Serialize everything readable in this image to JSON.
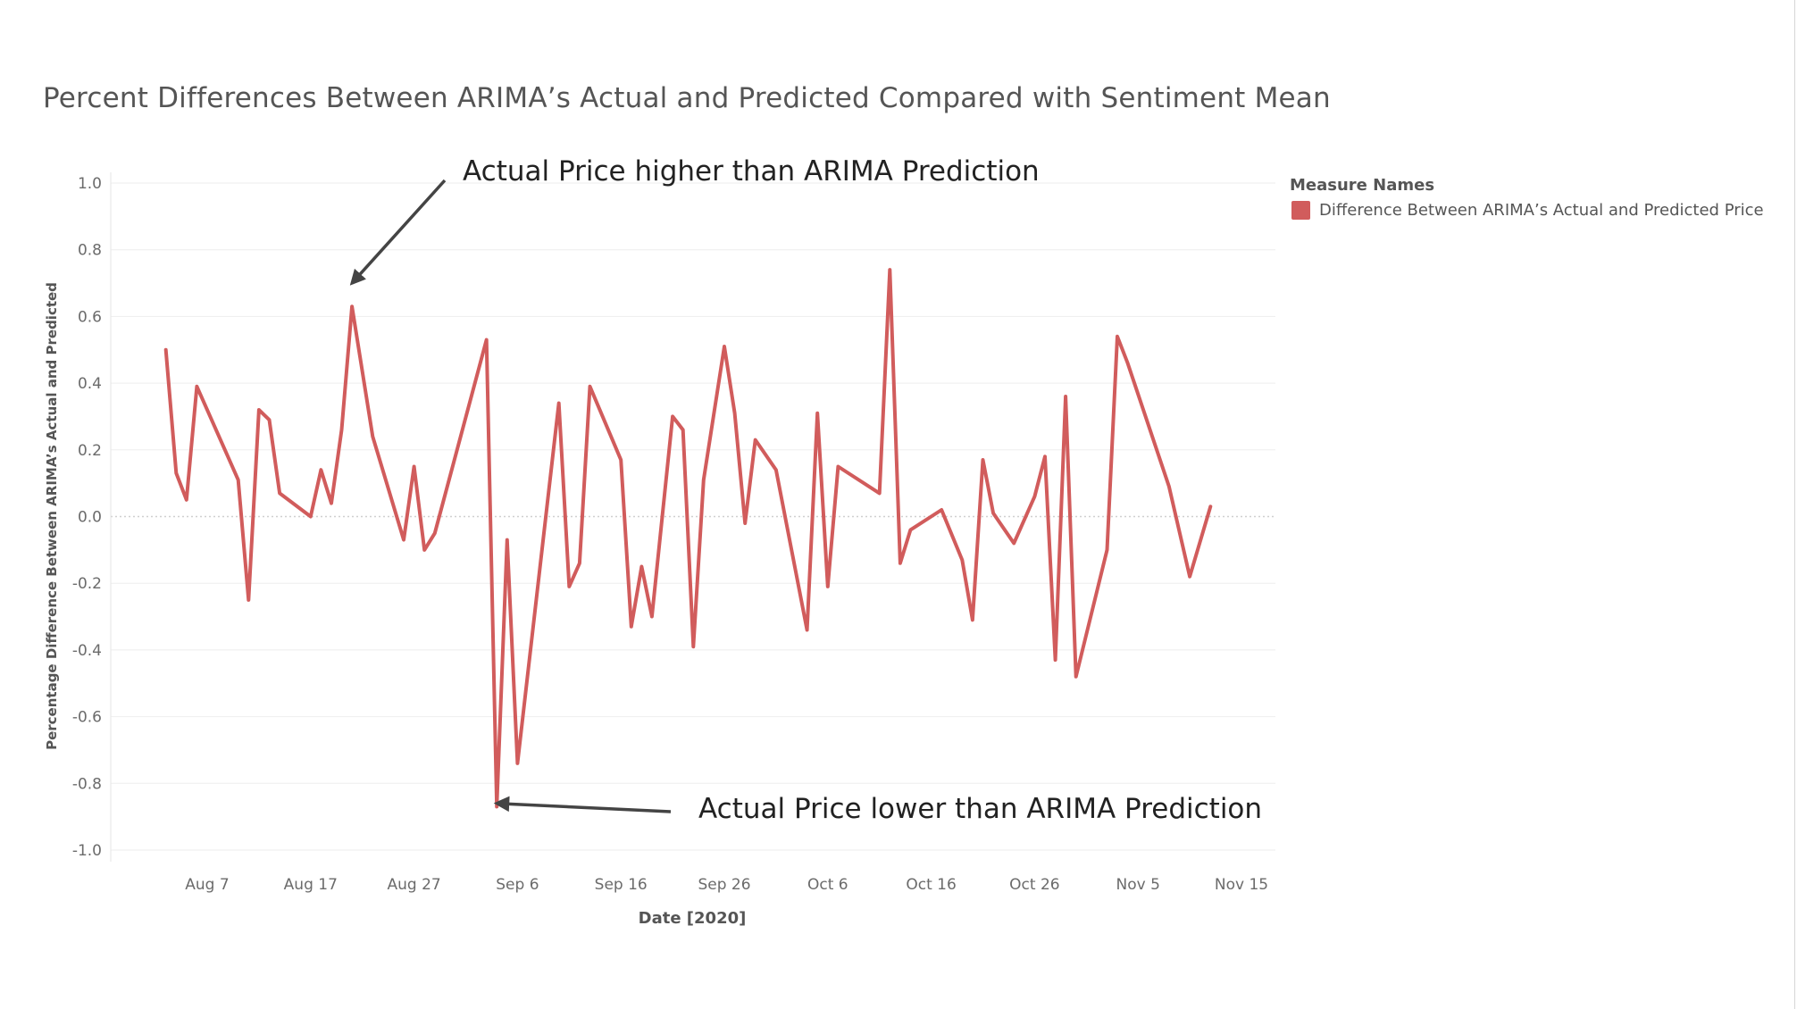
{
  "colors": {
    "series": "#d15c5c",
    "axis_text": "#6b6b6b",
    "title": "#555555",
    "gridline": "#eeeeee",
    "zero_line": "#cfcfcf",
    "annotation": "#222222",
    "arrow": "#444444"
  },
  "chart_data": {
    "type": "line",
    "title": "Percent Differences Between ARIMA’s Actual and Predicted Compared with Sentiment Mean",
    "xlabel": "Date [2020]",
    "ylabel": "Percentage Difference Between ARIMA’s Actual and Predicted",
    "ylim": [
      -1.0,
      1.0
    ],
    "y_ticks": [
      "1.0",
      "0.8",
      "0.6",
      "0.4",
      "0.2",
      "0.0",
      "-0.2",
      "-0.4",
      "-0.6",
      "-0.8",
      "-1.0"
    ],
    "y_tick_values": [
      1.0,
      0.8,
      0.6,
      0.4,
      0.2,
      0.0,
      -0.2,
      -0.4,
      -0.6,
      -0.8,
      -1.0
    ],
    "x_ticks": [
      "Aug 7",
      "Aug 17",
      "Aug 27",
      "Sep 6",
      "Sep 16",
      "Sep 26",
      "Oct 6",
      "Oct 16",
      "Oct 26",
      "Nov 5",
      "Nov 15"
    ],
    "x_tick_days": [
      0,
      10,
      20,
      30,
      40,
      50,
      60,
      70,
      80,
      90,
      100
    ],
    "x_unit": "days since Aug 7, 2020",
    "grid": true,
    "legend": {
      "title": "Measure Names",
      "placement": "top-right",
      "entries": [
        "Difference Between ARIMA’s Actual and Predicted Price"
      ]
    },
    "series": [
      {
        "name": "Difference Between ARIMA’s Actual and Predicted Price",
        "x": [
          -4,
          -3,
          -2,
          -1,
          3,
          4,
          5,
          6,
          7,
          10,
          11,
          12,
          13,
          14,
          16,
          19,
          20,
          21,
          22,
          27,
          28,
          29,
          30,
          34,
          35,
          36,
          37,
          40,
          41,
          42,
          43,
          45,
          46,
          47,
          48,
          50,
          51,
          52,
          53,
          55,
          58,
          59,
          60,
          61,
          65,
          66,
          67,
          68,
          71,
          73,
          74,
          75,
          76,
          78,
          80,
          81,
          82,
          83,
          84,
          87,
          88,
          89,
          93,
          95,
          97
        ],
        "values": [
          0.5,
          0.13,
          0.05,
          0.39,
          0.11,
          -0.25,
          0.32,
          0.29,
          0.07,
          0.0,
          0.14,
          0.04,
          0.26,
          0.63,
          0.24,
          -0.07,
          0.15,
          -0.1,
          -0.05,
          0.53,
          -0.87,
          -0.07,
          -0.74,
          0.34,
          -0.21,
          -0.14,
          0.39,
          0.17,
          -0.33,
          -0.15,
          -0.3,
          0.3,
          0.26,
          -0.39,
          0.11,
          0.51,
          0.31,
          -0.02,
          0.23,
          0.14,
          -0.34,
          0.31,
          -0.21,
          0.15,
          0.07,
          0.74,
          -0.14,
          -0.04,
          0.02,
          -0.13,
          -0.31,
          0.17,
          0.01,
          -0.08,
          0.06,
          0.18,
          -0.43,
          0.36,
          -0.48,
          -0.1,
          0.54,
          0.46,
          0.09,
          -0.18,
          0.03
        ]
      }
    ],
    "annotations": [
      {
        "text": "Actual Price higher than ARIMA Prediction",
        "arrow_to": {
          "x": 14,
          "y": 0.7
        }
      },
      {
        "text": "Actual Price lower than ARIMA Prediction",
        "arrow_to": {
          "x": 28,
          "y": -0.86
        }
      }
    ]
  }
}
